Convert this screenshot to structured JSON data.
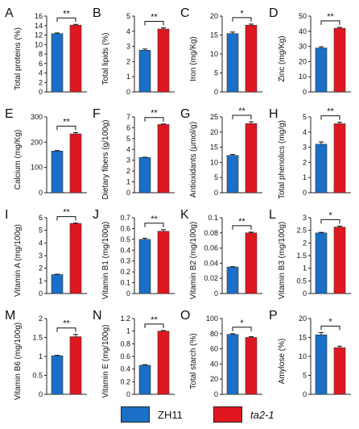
{
  "colors": {
    "zh11": "#1a6fc6",
    "ta21": "#e0171f",
    "axis": "#222222"
  },
  "legend": {
    "items": [
      {
        "label": "ZH11",
        "color": "#1a6fc6",
        "italic": false
      },
      {
        "label": "ta2-1",
        "color": "#e0171f",
        "italic": true
      }
    ]
  },
  "chart_data": [
    {
      "type": "bar",
      "panel_letter": "A",
      "ylabel": "Total proteins (%)",
      "ylim": [
        0,
        16
      ],
      "yticks": [
        0,
        2,
        4,
        6,
        8,
        10,
        12,
        14,
        16
      ],
      "categories": [
        "ZH11",
        "ta2-1"
      ],
      "values": [
        12.3,
        14.1
      ],
      "errors": [
        0.15,
        0.15
      ],
      "significance": "**"
    },
    {
      "type": "bar",
      "panel_letter": "B",
      "ylabel": "Total lipids (%)",
      "ylim": [
        0,
        5
      ],
      "yticks": [
        0,
        1,
        2,
        3,
        4,
        5
      ],
      "categories": [
        "ZH11",
        "ta2-1"
      ],
      "values": [
        2.75,
        4.15
      ],
      "errors": [
        0.08,
        0.08
      ],
      "significance": "**"
    },
    {
      "type": "bar",
      "panel_letter": "C",
      "ylabel": "Iron (mg/Kg)",
      "ylim": [
        0,
        20
      ],
      "yticks": [
        0,
        5,
        10,
        15,
        20
      ],
      "categories": [
        "ZH11",
        "ta2-1"
      ],
      "values": [
        15.4,
        17.6
      ],
      "errors": [
        0.4,
        0.3
      ],
      "significance": "*"
    },
    {
      "type": "bar",
      "panel_letter": "D",
      "ylabel": "Zinc (mg/Kg)",
      "ylim": [
        0,
        50
      ],
      "yticks": [
        0,
        10,
        20,
        30,
        40,
        50
      ],
      "categories": [
        "ZH11",
        "ta2-1"
      ],
      "values": [
        29,
        42
      ],
      "errors": [
        0.8,
        0.6
      ],
      "significance": "**"
    },
    {
      "type": "bar",
      "panel_letter": "E",
      "ylabel": "Calcium (mg/Kg)",
      "ylim": [
        0,
        300
      ],
      "yticks": [
        0,
        100,
        200,
        300
      ],
      "categories": [
        "ZH11",
        "ta2-1"
      ],
      "values": [
        165,
        233
      ],
      "errors": [
        2,
        5
      ],
      "significance": "**"
    },
    {
      "type": "bar",
      "panel_letter": "F",
      "ylabel": "Dietary fibers (g/100g)",
      "ylim": [
        0,
        7
      ],
      "yticks": [
        0,
        1,
        2,
        3,
        4,
        5,
        6,
        7
      ],
      "categories": [
        "ZH11",
        "ta2-1"
      ],
      "values": [
        3.25,
        6.3
      ],
      "errors": [
        0.03,
        0.05
      ],
      "significance": "**"
    },
    {
      "type": "bar",
      "panel_letter": "G",
      "ylabel": "Antioxidants (μmol/g)",
      "ylim": [
        0,
        25
      ],
      "yticks": [
        0,
        5,
        10,
        15,
        20,
        25
      ],
      "categories": [
        "ZH11",
        "ta2-1"
      ],
      "values": [
        12.3,
        22.8
      ],
      "errors": [
        0.3,
        0.6
      ],
      "significance": "**"
    },
    {
      "type": "bar",
      "panel_letter": "H",
      "ylabel": "Total phenolics (mg/g)",
      "ylim": [
        0,
        5
      ],
      "yticks": [
        0,
        1,
        2,
        3,
        4,
        5
      ],
      "categories": [
        "ZH11",
        "ta2-1"
      ],
      "values": [
        3.2,
        4.55
      ],
      "errors": [
        0.15,
        0.1
      ],
      "significance": "**"
    },
    {
      "type": "bar",
      "panel_letter": "I",
      "ylabel": "Vitamin A (mg/100g)",
      "ylim": [
        0,
        6
      ],
      "yticks": [
        0,
        1,
        2,
        3,
        4,
        5,
        6
      ],
      "categories": [
        "ZH11",
        "ta2-1"
      ],
      "values": [
        1.5,
        5.55
      ],
      "errors": [
        0.03,
        0.03
      ],
      "significance": "**"
    },
    {
      "type": "bar",
      "panel_letter": "J",
      "ylabel": "Vitamin B1 (mg/100g)",
      "ylim": [
        0,
        0.7
      ],
      "yticks": [
        0,
        0.1,
        0.2,
        0.3,
        0.4,
        0.5,
        0.6,
        0.7
      ],
      "categories": [
        "ZH11",
        "ta2-1"
      ],
      "values": [
        0.5,
        0.575
      ],
      "errors": [
        0.01,
        0.015
      ],
      "significance": "**"
    },
    {
      "type": "bar",
      "panel_letter": "K",
      "ylabel": "Vitamin B2 (mg/100g)",
      "ylim": [
        0,
        0.1
      ],
      "yticks": [
        0,
        0.02,
        0.04,
        0.06,
        0.08,
        0.1
      ],
      "categories": [
        "ZH11",
        "ta2-1"
      ],
      "values": [
        0.035,
        0.08
      ],
      "errors": [
        0.0005,
        0.001
      ],
      "significance": "**"
    },
    {
      "type": "bar",
      "panel_letter": "L",
      "ylabel": "Vitamin B3 (mg/100g)",
      "ylim": [
        0,
        3
      ],
      "yticks": [
        0,
        0.5,
        1,
        1.5,
        2,
        2.5,
        3
      ],
      "categories": [
        "ZH11",
        "ta2-1"
      ],
      "values": [
        2.4,
        2.63
      ],
      "errors": [
        0.02,
        0.04
      ],
      "significance": "*"
    },
    {
      "type": "bar",
      "panel_letter": "M",
      "ylabel": "Vitamin B6 (mg/100g)",
      "ylim": [
        0,
        2
      ],
      "yticks": [
        0,
        0.5,
        1,
        1.5,
        2
      ],
      "categories": [
        "ZH11",
        "ta2-1"
      ],
      "values": [
        1.02,
        1.52
      ],
      "errors": [
        0.01,
        0.06
      ],
      "significance": "**"
    },
    {
      "type": "bar",
      "panel_letter": "N",
      "ylabel": "Vitamin E (mg/100g)",
      "ylim": [
        0,
        1.2
      ],
      "yticks": [
        0,
        0.2,
        0.4,
        0.6,
        0.8,
        1,
        1.2
      ],
      "categories": [
        "ZH11",
        "ta2-1"
      ],
      "values": [
        0.46,
        1.0
      ],
      "errors": [
        0.01,
        0.01
      ],
      "significance": "**"
    },
    {
      "type": "bar",
      "panel_letter": "O",
      "ylabel": "Total starch (%)",
      "ylim": [
        0,
        100
      ],
      "yticks": [
        0,
        20,
        40,
        60,
        80,
        100
      ],
      "categories": [
        "ZH11",
        "ta2-1"
      ],
      "values": [
        79,
        75
      ],
      "errors": [
        1,
        1
      ],
      "significance": "*"
    },
    {
      "type": "bar",
      "panel_letter": "P",
      "ylabel": "Amylose (%)",
      "ylim": [
        0,
        20
      ],
      "yticks": [
        0,
        5,
        10,
        15,
        20
      ],
      "categories": [
        "ZH11",
        "ta2-1"
      ],
      "values": [
        15.7,
        12.3
      ],
      "errors": [
        0.6,
        0.4
      ],
      "significance": "*"
    }
  ]
}
